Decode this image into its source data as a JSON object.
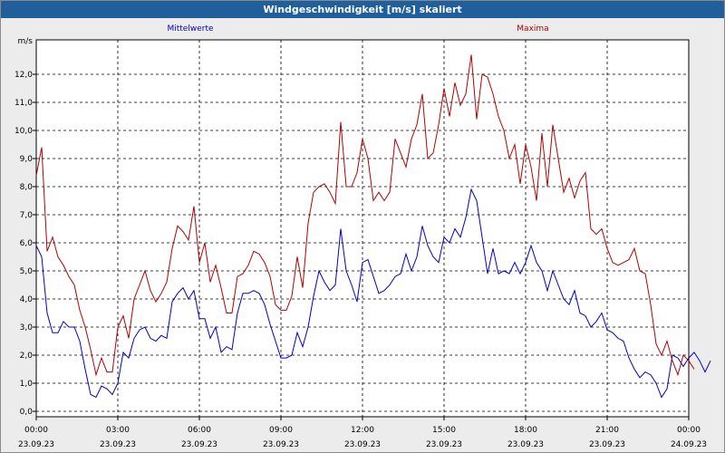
{
  "window": {
    "title": "Windgeschwindigkeit [m/s] skaliert"
  },
  "colors": {
    "title_bar": "#1f5f9b",
    "mittel": "#0000c8",
    "maxima": "#b40000",
    "grid": "#000000"
  },
  "chart_data": {
    "type": "line",
    "title": "Windgeschwindigkeit [m/s] skaliert",
    "ylabel": "m/s",
    "xlabel": "",
    "ylim": [
      0,
      13
    ],
    "xlim": [
      0,
      24
    ],
    "y_ticks": [
      "0,0",
      "1,0",
      "2,0",
      "3,0",
      "4,0",
      "5,0",
      "6,0",
      "7,0",
      "8,0",
      "9,0",
      "10,0",
      "11,0",
      "12,0"
    ],
    "x_ticks": [
      {
        "time": "00:00",
        "date": "23.09.23"
      },
      {
        "time": "03:00",
        "date": "23.09.23"
      },
      {
        "time": "06:00",
        "date": "23.09.23"
      },
      {
        "time": "09:00",
        "date": "23.09.23"
      },
      {
        "time": "12:00",
        "date": "23.09.23"
      },
      {
        "time": "15:00",
        "date": "23.09.23"
      },
      {
        "time": "18:00",
        "date": "23.09.23"
      },
      {
        "time": "21:00",
        "date": "23.09.23"
      },
      {
        "time": "00:00",
        "date": "24.09.23"
      }
    ],
    "grid": true,
    "legend_placement": "top",
    "series": [
      {
        "name": "Mittelwerte",
        "color": "#0000c8",
        "points": [
          [
            0,
            5.9
          ],
          [
            0.2,
            5.5
          ],
          [
            0.4,
            3.5
          ],
          [
            0.6,
            2.8
          ],
          [
            0.8,
            2.8
          ],
          [
            1.0,
            3.2
          ],
          [
            1.2,
            3.0
          ],
          [
            1.4,
            3.0
          ],
          [
            1.6,
            2.5
          ],
          [
            1.8,
            1.5
          ],
          [
            2.0,
            0.6
          ],
          [
            2.2,
            0.5
          ],
          [
            2.4,
            0.9
          ],
          [
            2.6,
            0.8
          ],
          [
            2.8,
            0.6
          ],
          [
            3.0,
            1.0
          ],
          [
            3.2,
            2.1
          ],
          [
            3.4,
            1.9
          ],
          [
            3.6,
            2.6
          ],
          [
            3.8,
            2.9
          ],
          [
            4.0,
            3.0
          ],
          [
            4.2,
            2.6
          ],
          [
            4.4,
            2.5
          ],
          [
            4.6,
            2.7
          ],
          [
            4.8,
            2.6
          ],
          [
            5.0,
            3.9
          ],
          [
            5.2,
            4.2
          ],
          [
            5.4,
            4.4
          ],
          [
            5.6,
            4.0
          ],
          [
            5.8,
            4.3
          ],
          [
            6.0,
            3.3
          ],
          [
            6.2,
            3.3
          ],
          [
            6.4,
            2.6
          ],
          [
            6.6,
            3.0
          ],
          [
            6.8,
            2.1
          ],
          [
            7.0,
            2.3
          ],
          [
            7.2,
            2.2
          ],
          [
            7.4,
            3.5
          ],
          [
            7.6,
            4.2
          ],
          [
            7.8,
            4.2
          ],
          [
            8.0,
            4.3
          ],
          [
            8.2,
            4.2
          ],
          [
            8.4,
            3.8
          ],
          [
            8.6,
            3.1
          ],
          [
            8.8,
            2.5
          ],
          [
            9.0,
            1.9
          ],
          [
            9.2,
            1.9
          ],
          [
            9.4,
            2.0
          ],
          [
            9.6,
            2.8
          ],
          [
            9.8,
            2.3
          ],
          [
            10.0,
            3.0
          ],
          [
            10.2,
            4.1
          ],
          [
            10.4,
            5.0
          ],
          [
            10.6,
            4.6
          ],
          [
            10.8,
            4.3
          ],
          [
            11.0,
            4.5
          ],
          [
            11.2,
            6.5
          ],
          [
            11.4,
            5.0
          ],
          [
            11.6,
            4.5
          ],
          [
            11.8,
            3.9
          ],
          [
            12.0,
            5.3
          ],
          [
            12.2,
            5.4
          ],
          [
            12.4,
            4.8
          ],
          [
            12.6,
            4.2
          ],
          [
            12.8,
            4.3
          ],
          [
            13.0,
            4.5
          ],
          [
            13.2,
            4.8
          ],
          [
            13.4,
            4.9
          ],
          [
            13.6,
            5.6
          ],
          [
            13.8,
            5.0
          ],
          [
            14.0,
            5.5
          ],
          [
            14.2,
            6.6
          ],
          [
            14.4,
            5.9
          ],
          [
            14.6,
            5.5
          ],
          [
            14.8,
            5.3
          ],
          [
            15.0,
            6.2
          ],
          [
            15.2,
            6.0
          ],
          [
            15.4,
            6.5
          ],
          [
            15.6,
            6.2
          ],
          [
            15.8,
            6.9
          ],
          [
            16.0,
            7.9
          ],
          [
            16.2,
            7.5
          ],
          [
            16.4,
            6.2
          ],
          [
            16.6,
            4.9
          ],
          [
            16.8,
            5.8
          ],
          [
            17.0,
            4.9
          ],
          [
            17.2,
            5.0
          ],
          [
            17.4,
            4.9
          ],
          [
            17.6,
            5.3
          ],
          [
            17.8,
            4.9
          ],
          [
            18.0,
            5.3
          ],
          [
            18.2,
            5.9
          ],
          [
            18.4,
            5.3
          ],
          [
            18.6,
            5.0
          ],
          [
            18.8,
            4.3
          ],
          [
            19.0,
            5.0
          ],
          [
            19.2,
            4.5
          ],
          [
            19.4,
            4.0
          ],
          [
            19.6,
            3.8
          ],
          [
            19.8,
            4.3
          ],
          [
            20.0,
            3.5
          ],
          [
            20.2,
            3.4
          ],
          [
            20.4,
            3.0
          ],
          [
            20.6,
            3.2
          ],
          [
            20.8,
            3.5
          ],
          [
            21.0,
            2.9
          ],
          [
            21.2,
            2.8
          ],
          [
            21.4,
            2.6
          ],
          [
            21.6,
            2.5
          ],
          [
            21.8,
            1.9
          ],
          [
            22.0,
            1.5
          ],
          [
            22.2,
            1.2
          ],
          [
            22.4,
            1.4
          ],
          [
            22.6,
            1.3
          ],
          [
            22.8,
            1.0
          ],
          [
            23.0,
            0.5
          ],
          [
            23.2,
            0.8
          ],
          [
            23.4,
            2.0
          ],
          [
            23.6,
            1.9
          ],
          [
            23.8,
            1.6
          ],
          [
            24.0,
            1.9
          ],
          [
            24.2,
            2.1
          ],
          [
            24.4,
            1.8
          ],
          [
            24.6,
            1.4
          ],
          [
            24.8,
            1.8
          ]
        ]
      },
      {
        "name": "Maxima",
        "color": "#b40000",
        "points": [
          [
            0,
            8.4
          ],
          [
            0.2,
            9.4
          ],
          [
            0.4,
            5.7
          ],
          [
            0.6,
            6.2
          ],
          [
            0.8,
            5.5
          ],
          [
            1.0,
            5.2
          ],
          [
            1.2,
            4.8
          ],
          [
            1.4,
            4.5
          ],
          [
            1.6,
            3.6
          ],
          [
            1.8,
            3.0
          ],
          [
            2.0,
            2.2
          ],
          [
            2.2,
            1.3
          ],
          [
            2.4,
            1.9
          ],
          [
            2.6,
            1.4
          ],
          [
            2.8,
            1.4
          ],
          [
            3.0,
            3.0
          ],
          [
            3.2,
            3.4
          ],
          [
            3.4,
            2.6
          ],
          [
            3.6,
            4.0
          ],
          [
            3.8,
            4.5
          ],
          [
            4.0,
            5.0
          ],
          [
            4.2,
            4.3
          ],
          [
            4.4,
            3.9
          ],
          [
            4.6,
            4.2
          ],
          [
            4.8,
            4.6
          ],
          [
            5.0,
            5.8
          ],
          [
            5.2,
            6.6
          ],
          [
            5.4,
            6.4
          ],
          [
            5.6,
            6.1
          ],
          [
            5.8,
            7.3
          ],
          [
            6.0,
            5.3
          ],
          [
            6.2,
            6.0
          ],
          [
            6.4,
            4.6
          ],
          [
            6.6,
            5.2
          ],
          [
            6.8,
            4.4
          ],
          [
            7.0,
            3.5
          ],
          [
            7.2,
            3.5
          ],
          [
            7.4,
            4.8
          ],
          [
            7.6,
            4.9
          ],
          [
            7.8,
            5.2
          ],
          [
            8.0,
            5.7
          ],
          [
            8.2,
            5.6
          ],
          [
            8.4,
            5.3
          ],
          [
            8.6,
            4.8
          ],
          [
            8.8,
            3.8
          ],
          [
            9.0,
            3.6
          ],
          [
            9.2,
            3.6
          ],
          [
            9.4,
            4.1
          ],
          [
            9.6,
            5.5
          ],
          [
            9.8,
            4.4
          ],
          [
            10.0,
            6.7
          ],
          [
            10.2,
            7.8
          ],
          [
            10.4,
            8.0
          ],
          [
            10.6,
            8.1
          ],
          [
            10.8,
            7.8
          ],
          [
            11.0,
            7.4
          ],
          [
            11.2,
            10.3
          ],
          [
            11.4,
            8.0
          ],
          [
            11.6,
            8.0
          ],
          [
            11.8,
            8.5
          ],
          [
            12.0,
            9.7
          ],
          [
            12.2,
            9.0
          ],
          [
            12.4,
            7.5
          ],
          [
            12.6,
            7.8
          ],
          [
            12.8,
            7.5
          ],
          [
            13.0,
            7.8
          ],
          [
            13.2,
            9.7
          ],
          [
            13.4,
            9.2
          ],
          [
            13.6,
            8.7
          ],
          [
            13.8,
            9.7
          ],
          [
            14.0,
            10.2
          ],
          [
            14.2,
            11.3
          ],
          [
            14.4,
            9.0
          ],
          [
            14.6,
            9.2
          ],
          [
            14.8,
            10.2
          ],
          [
            15.0,
            11.5
          ],
          [
            15.2,
            10.5
          ],
          [
            15.4,
            11.7
          ],
          [
            15.6,
            10.9
          ],
          [
            15.8,
            11.3
          ],
          [
            16.0,
            12.7
          ],
          [
            16.2,
            10.4
          ],
          [
            16.4,
            12.0
          ],
          [
            16.6,
            11.9
          ],
          [
            16.8,
            11.3
          ],
          [
            17.0,
            10.5
          ],
          [
            17.2,
            10.0
          ],
          [
            17.4,
            9.0
          ],
          [
            17.6,
            9.5
          ],
          [
            17.8,
            8.1
          ],
          [
            18.0,
            9.5
          ],
          [
            18.2,
            8.7
          ],
          [
            18.4,
            7.5
          ],
          [
            18.6,
            9.9
          ],
          [
            18.8,
            8.0
          ],
          [
            19.0,
            10.2
          ],
          [
            19.2,
            9.0
          ],
          [
            19.4,
            7.8
          ],
          [
            19.6,
            8.3
          ],
          [
            19.8,
            7.6
          ],
          [
            20.0,
            8.2
          ],
          [
            20.2,
            8.5
          ],
          [
            20.4,
            6.5
          ],
          [
            20.6,
            6.3
          ],
          [
            20.8,
            6.5
          ],
          [
            21.0,
            5.8
          ],
          [
            21.2,
            5.3
          ],
          [
            21.4,
            5.2
          ],
          [
            21.6,
            5.3
          ],
          [
            21.8,
            5.4
          ],
          [
            22.0,
            5.8
          ],
          [
            22.2,
            5.0
          ],
          [
            22.4,
            4.9
          ],
          [
            22.6,
            3.8
          ],
          [
            22.8,
            2.4
          ],
          [
            23.0,
            2.0
          ],
          [
            23.2,
            2.5
          ],
          [
            23.4,
            1.8
          ],
          [
            23.6,
            1.3
          ],
          [
            23.8,
            2.0
          ],
          [
            24.0,
            1.8
          ],
          [
            24.2,
            1.5
          ]
        ]
      }
    ]
  }
}
